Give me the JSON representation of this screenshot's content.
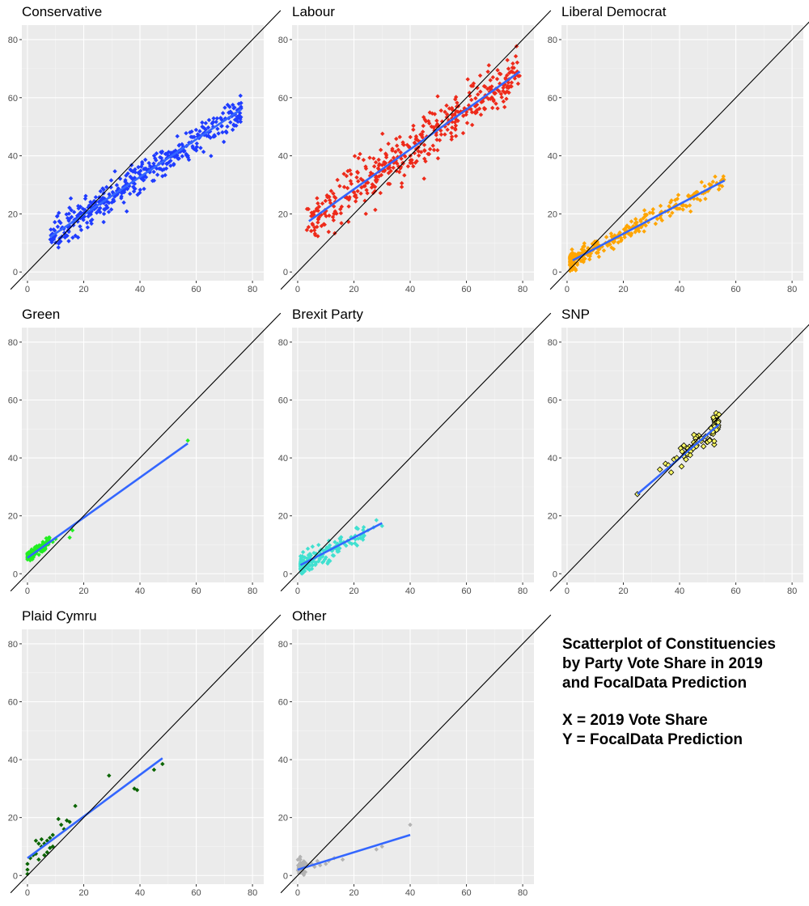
{
  "figure": {
    "caption": {
      "line1": "Scatterplot of Constituencies",
      "line2": "by Party Vote Share in 2019",
      "line3": "and FocalData Prediction",
      "line4": "X = 2019 Vote Share",
      "line5": "Y = FocalData Prediction"
    }
  },
  "chart_data": [
    {
      "type": "scatter",
      "title": "Conservative",
      "color": "#1f3cff",
      "xlim": [
        -2,
        84
      ],
      "ylim": [
        -3,
        85
      ],
      "xticks": [
        0,
        20,
        40,
        60,
        80
      ],
      "yticks": [
        0,
        20,
        40,
        60,
        80
      ],
      "fit": {
        "x0": 8,
        "y0": 12,
        "x1": 76,
        "y1": 56
      },
      "points_described": "~630 constituencies, x 8-76, y ~10-55, tightly around fit line",
      "cluster": {
        "xmin": 8,
        "xmax": 76,
        "slope": 0.647,
        "intercept": 6.8,
        "spread": 2.6,
        "n": 420
      }
    },
    {
      "type": "scatter",
      "title": "Labour",
      "color": "#ee2a1a",
      "xlim": [
        -2,
        84
      ],
      "ylim": [
        -3,
        85
      ],
      "xticks": [
        0,
        20,
        40,
        60,
        80
      ],
      "yticks": [
        0,
        20,
        40,
        60,
        80
      ],
      "fit": {
        "x0": 4,
        "y0": 17.5,
        "x1": 79,
        "y1": 69
      },
      "cluster": {
        "xmin": 3,
        "xmax": 79,
        "slope": 0.687,
        "intercept": 14.8,
        "spread": 4.5,
        "n": 430
      }
    },
    {
      "type": "scatter",
      "title": "Liberal Democrat",
      "color": "#ffa500",
      "xlim": [
        -2,
        84
      ],
      "ylim": [
        -3,
        85
      ],
      "xticks": [
        0,
        20,
        40,
        60,
        80
      ],
      "yticks": [
        0,
        20,
        40,
        60,
        80
      ],
      "fit": {
        "x0": 2,
        "y0": 4,
        "x1": 56,
        "y1": 31.5
      },
      "cluster": {
        "xmin": 1,
        "xmax": 56,
        "slope": 0.51,
        "intercept": 3.0,
        "spread": 1.6,
        "n": 300,
        "skew": 2.2
      }
    },
    {
      "type": "scatter",
      "title": "Green",
      "color": "#22ee22",
      "xlim": [
        -2,
        84
      ],
      "ylim": [
        -3,
        85
      ],
      "xticks": [
        0,
        20,
        40,
        60,
        80
      ],
      "yticks": [
        0,
        20,
        40,
        60,
        80
      ],
      "fit": {
        "x0": 0,
        "y0": 5.5,
        "x1": 57,
        "y1": 45
      },
      "cluster": {
        "xmin": 0,
        "xmax": 8,
        "slope": 0.69,
        "intercept": 5.5,
        "spread": 0.9,
        "n": 120,
        "skew": 2.0
      },
      "extra_points": [
        [
          9,
          11
        ],
        [
          10,
          12
        ],
        [
          15,
          12.5
        ],
        [
          16,
          15
        ],
        [
          57,
          46
        ]
      ]
    },
    {
      "type": "scatter",
      "title": "Brexit Party",
      "color": "#40e0d0",
      "xlim": [
        -2,
        84
      ],
      "ylim": [
        -3,
        85
      ],
      "xticks": [
        0,
        20,
        40,
        60,
        80
      ],
      "yticks": [
        0,
        20,
        40,
        60,
        80
      ],
      "fit": {
        "x0": 1,
        "y0": 3,
        "x1": 30,
        "y1": 17.5
      },
      "cluster": {
        "xmin": 1,
        "xmax": 24,
        "slope": 0.5,
        "intercept": 2.5,
        "spread": 1.8,
        "n": 170,
        "skew": 1.8
      },
      "extra_points": [
        [
          28,
          18.5
        ],
        [
          30,
          16.5
        ],
        [
          27,
          16
        ],
        [
          25,
          15
        ]
      ]
    },
    {
      "type": "scatter",
      "title": "SNP",
      "color": "#ffff66",
      "stroke": "#000000",
      "xlim": [
        -2,
        84
      ],
      "ylim": [
        -3,
        85
      ],
      "xticks": [
        0,
        20,
        40,
        60,
        80
      ],
      "yticks": [
        0,
        20,
        40,
        60,
        80
      ],
      "fit": {
        "x0": 25,
        "y0": 27.5,
        "x1": 54,
        "y1": 51.5
      },
      "cluster": {
        "xmin": 40,
        "xmax": 54,
        "slope": 0.83,
        "intercept": 6.7,
        "spread": 2.0,
        "n": 52
      },
      "extra_points": [
        [
          25,
          27.5
        ],
        [
          33,
          36
        ],
        [
          35,
          38
        ],
        [
          36,
          37.5
        ],
        [
          37,
          35
        ],
        [
          38,
          39.5
        ],
        [
          39,
          40
        ],
        [
          53,
          55.5
        ],
        [
          54,
          55
        ],
        [
          52,
          54
        ]
      ]
    },
    {
      "type": "scatter",
      "title": "Plaid Cymru",
      "color": "#0a6400",
      "xlim": [
        -2,
        84
      ],
      "ylim": [
        -3,
        85
      ],
      "xticks": [
        0,
        20,
        40,
        60,
        80
      ],
      "yticks": [
        0,
        20,
        40,
        60,
        80
      ],
      "fit": {
        "x0": 0,
        "y0": 6,
        "x1": 48,
        "y1": 40.5
      },
      "extra_points": [
        [
          0,
          0.5
        ],
        [
          0,
          2
        ],
        [
          0,
          4
        ],
        [
          1,
          6
        ],
        [
          2,
          7
        ],
        [
          3,
          7.5
        ],
        [
          3,
          12
        ],
        [
          4,
          5.5
        ],
        [
          4,
          11
        ],
        [
          5,
          10
        ],
        [
          5,
          12.5
        ],
        [
          6,
          7
        ],
        [
          6,
          11
        ],
        [
          7,
          8
        ],
        [
          7,
          12
        ],
        [
          8,
          13
        ],
        [
          8,
          9.5
        ],
        [
          9,
          10
        ],
        [
          9,
          14
        ],
        [
          11,
          19.5
        ],
        [
          12,
          17.5
        ],
        [
          13,
          16
        ],
        [
          14,
          19
        ],
        [
          15,
          18.5
        ],
        [
          17,
          24
        ],
        [
          29,
          34.5
        ],
        [
          38,
          30
        ],
        [
          39,
          29.5
        ],
        [
          45,
          36.5
        ],
        [
          48,
          38.5
        ]
      ]
    },
    {
      "type": "scatter",
      "title": "Other",
      "color": "#b3b3b3",
      "xlim": [
        -2,
        84
      ],
      "ylim": [
        -3,
        85
      ],
      "xticks": [
        0,
        20,
        40,
        60,
        80
      ],
      "yticks": [
        0,
        20,
        40,
        60,
        80
      ],
      "fit": {
        "x0": 0,
        "y0": 2,
        "x1": 40,
        "y1": 14
      },
      "cluster": {
        "xmin": 0,
        "xmax": 3,
        "slope": 0.3,
        "intercept": 2.8,
        "spread": 1.2,
        "n": 60
      },
      "extra_points": [
        [
          5,
          4
        ],
        [
          6,
          3
        ],
        [
          7,
          5
        ],
        [
          8,
          3.5
        ],
        [
          10,
          4
        ],
        [
          11,
          5
        ],
        [
          13,
          6
        ],
        [
          16,
          5.5
        ],
        [
          28,
          9
        ],
        [
          30,
          10
        ],
        [
          40,
          17.5
        ]
      ]
    }
  ]
}
